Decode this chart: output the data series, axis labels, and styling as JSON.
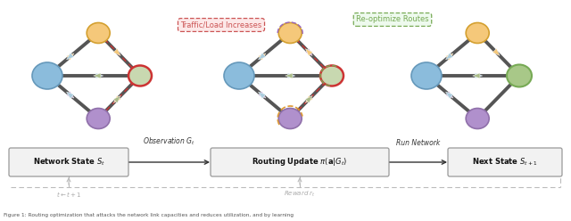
{
  "bg_color": "#ffffff",
  "blue": "#8bbcdc",
  "orange_fill": "#f5c87a",
  "orange_edge": "#d4a030",
  "purple_fill": "#b090cc",
  "purple_edge": "#9070aa",
  "red_edge": "#cc3333",
  "green_fill_1": "#c8d8b0",
  "green_edge_1": "#aabb88",
  "green_fill_2": "#a8c888",
  "green_edge_2": "#77aa55",
  "blue_edge": "#6699bb",
  "edge_gray": "#555555",
  "tri_orange": "#f5c87a",
  "tri_blue": "#aaccdd",
  "tri_purple": "#c0a8d8",
  "tri_green": "#aabb88",
  "tri_red": "#dd8888",
  "callout1_text": "Traffic/Load Increases",
  "callout1_fc": "#fce8e8",
  "callout1_ec": "#cc5555",
  "callout2_text": "Re-optimize Routes",
  "callout2_fc": "#eefaee",
  "callout2_ec": "#77aa55",
  "box1_label": "Network State $S_t$",
  "box2_label": "Routing Update $\\pi(\\mathbf{a}|G_t)$",
  "box3_label": "Next State $S_{t+1}$",
  "arr1_label": "Observation $G_t$",
  "arr2_label": "Run Network",
  "fb_label1": "$t \\leftarrow t+1$",
  "fb_label2": "Reward $r_t$",
  "caption": "Figure 1: Routing optimization that attacks the network link capacities and reduces utilization, and by learning"
}
